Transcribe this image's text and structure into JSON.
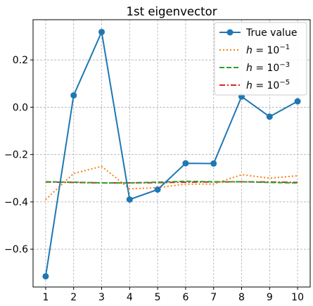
{
  "chart_data": {
    "type": "line",
    "title": "1st eigenvector",
    "xlabel": "",
    "ylabel": "",
    "x": [
      1,
      2,
      3,
      4,
      5,
      6,
      7,
      8,
      9,
      10
    ],
    "xlim": [
      0.55,
      10.45
    ],
    "ylim": [
      -0.76,
      0.37
    ],
    "xticks": [
      1,
      2,
      3,
      4,
      5,
      6,
      7,
      8,
      9,
      10
    ],
    "yticks": [
      0.2,
      0.0,
      -0.2,
      -0.4,
      -0.6
    ],
    "ytick_labels": [
      "0.2",
      "0.0",
      "−0.2",
      "−0.4",
      "−0.6"
    ],
    "grid": true,
    "legend_position": "top-right",
    "series": [
      {
        "name": "True value",
        "legend_base": "True value",
        "legend_exp": "",
        "color": "#1f77b4",
        "style": "solid-markers",
        "values": [
          -0.715,
          0.05,
          0.318,
          -0.39,
          -0.348,
          -0.237,
          -0.238,
          0.045,
          -0.04,
          0.025
        ]
      },
      {
        "name": "h = 10^-1",
        "legend_base": "h = 10",
        "legend_exp": "−1",
        "color": "#ff7f0e",
        "style": "dotted",
        "values": [
          -0.39,
          -0.28,
          -0.25,
          -0.345,
          -0.34,
          -0.325,
          -0.325,
          -0.285,
          -0.3,
          -0.29
        ]
      },
      {
        "name": "h = 10^-3",
        "legend_base": "h = 10",
        "legend_exp": "−3",
        "color": "#2ca02c",
        "style": "dashed",
        "values": [
          -0.315,
          -0.317,
          -0.32,
          -0.32,
          -0.317,
          -0.313,
          -0.315,
          -0.315,
          -0.318,
          -0.32
        ]
      },
      {
        "name": "h = 10^-5",
        "legend_base": "h = 10",
        "legend_exp": "−5",
        "color": "#d62728",
        "style": "dashdot",
        "values": [
          -0.316,
          -0.318,
          -0.32,
          -0.32,
          -0.319,
          -0.317,
          -0.316,
          -0.315,
          -0.316,
          -0.318
        ]
      }
    ]
  }
}
